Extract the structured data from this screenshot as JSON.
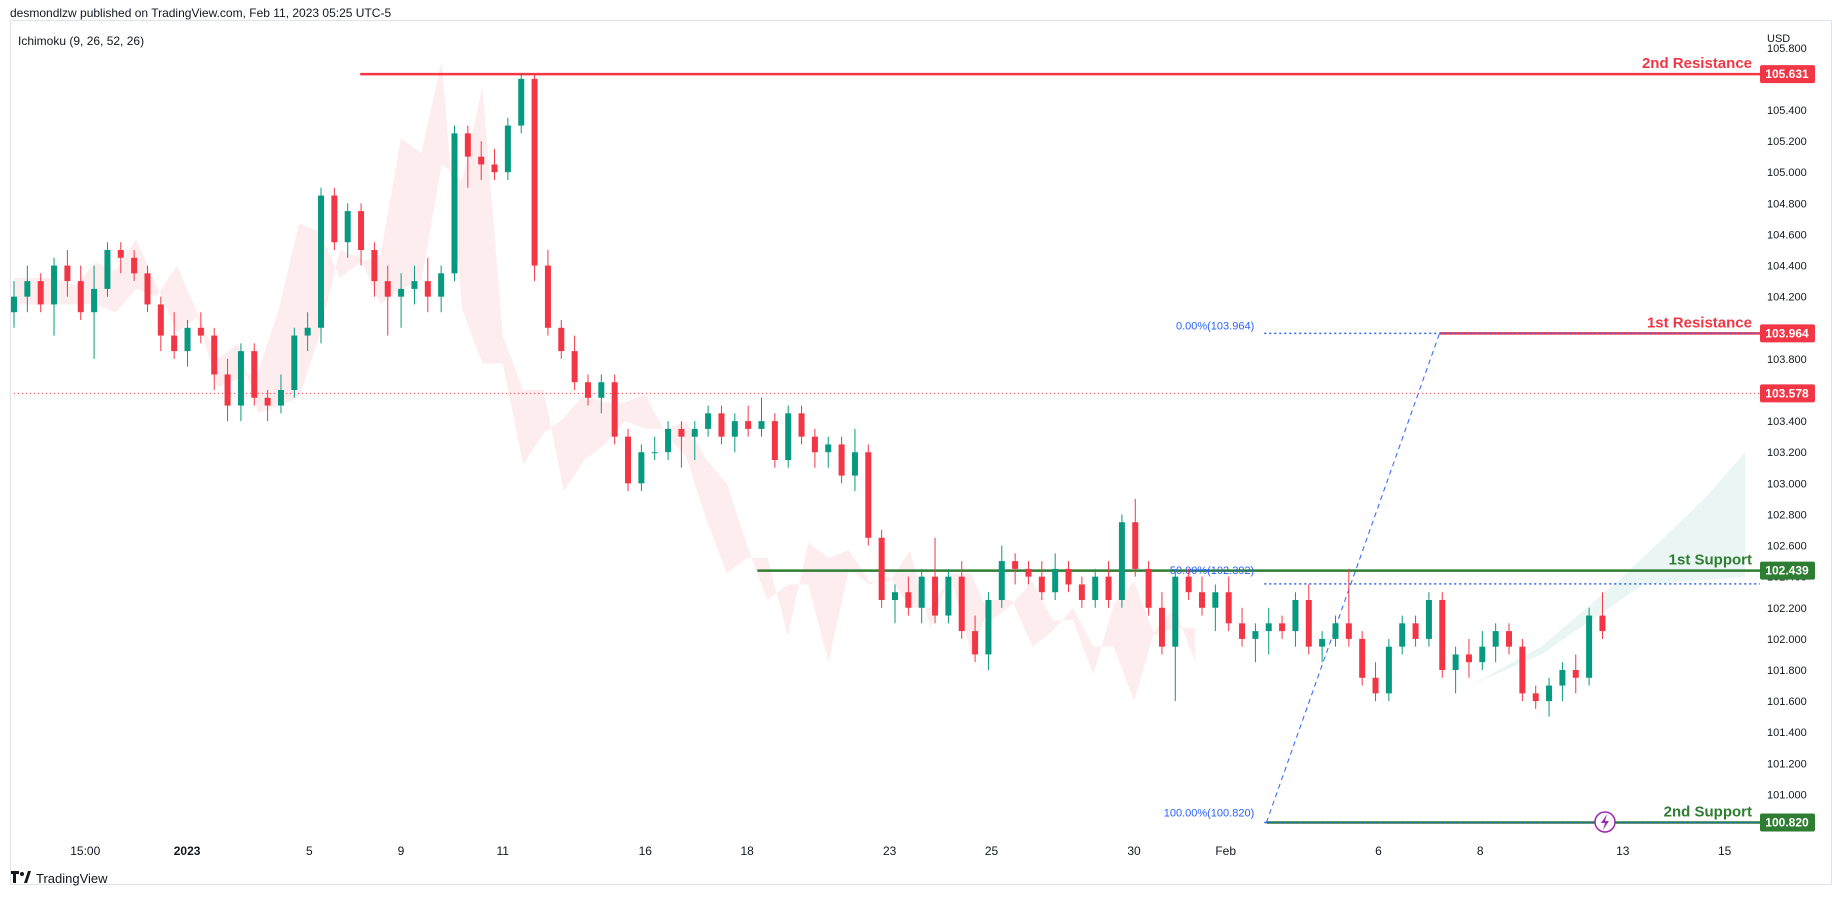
{
  "header": {
    "published_by": "desmondlzw published on TradingView.com, Feb 11, 2023 05:25 UTC-5",
    "indicator": "Ichimoku (9, 26, 52, 26)",
    "currency": "USD"
  },
  "footer": {
    "brand": "TradingView",
    "logo_icon": "tradingview-logo-icon"
  },
  "chart_data": {
    "type": "candlestick",
    "currency": "USD",
    "ylim": [
      100.72,
      105.85
    ],
    "xlim": [
      0,
      170
    ],
    "y_ticks": [
      "105.800",
      "105.600",
      "105.400",
      "105.200",
      "105.000",
      "104.800",
      "104.600",
      "104.400",
      "104.200",
      "104.000",
      "103.800",
      "103.600",
      "103.400",
      "103.200",
      "103.000",
      "102.800",
      "102.600",
      "102.400",
      "102.200",
      "102.000",
      "101.800",
      "101.600",
      "101.400",
      "101.200",
      "101.000",
      "100.800"
    ],
    "x_ticks": [
      {
        "label": "15:00",
        "x": 7
      },
      {
        "label": "2023",
        "x": 17
      },
      {
        "label": "5",
        "x": 29
      },
      {
        "label": "9",
        "x": 38
      },
      {
        "label": "11",
        "x": 48
      },
      {
        "label": "16",
        "x": 62
      },
      {
        "label": "18",
        "x": 72
      },
      {
        "label": "23",
        "x": 86
      },
      {
        "label": "25",
        "x": 96
      },
      {
        "label": "30",
        "x": 110
      },
      {
        "label": "Feb",
        "x": 119
      },
      {
        "label": "6",
        "x": 134
      },
      {
        "label": "8",
        "x": 144
      },
      {
        "label": "13",
        "x": 158
      },
      {
        "label": "15",
        "x": 168
      }
    ],
    "current_price": {
      "value": 103.578,
      "label": "103.578",
      "color": "#f23645"
    },
    "levels": [
      {
        "name": "2nd Resistance",
        "value": 105.631,
        "label": "105.631",
        "x_start": 34,
        "color": "#f23645"
      },
      {
        "name": "1st Resistance",
        "value": 103.964,
        "label": "103.964",
        "x_start": 140,
        "color": "#f23645"
      },
      {
        "name": "1st Support",
        "value": 102.439,
        "label": "102.439",
        "x_start": 73,
        "color": "#2e7d32"
      },
      {
        "name": "2nd Support",
        "value": 100.82,
        "label": "100.820",
        "x_start": 123,
        "color": "#2e7d32"
      }
    ],
    "fibonacci": [
      {
        "label": "0.00%(103.964)",
        "value": 103.964,
        "x_start": 122
      },
      {
        "label": "50.00%(102.392)",
        "value": 102.392,
        "x_start": 122
      },
      {
        "label": "100.00%(100.820)",
        "value": 100.82,
        "x_start": 122
      }
    ],
    "fib_trend": {
      "from": [
        123,
        100.82
      ],
      "to": [
        140,
        103.964
      ]
    },
    "candles": [
      [
        104.1,
        104.3,
        104.0,
        104.2
      ],
      [
        104.2,
        104.4,
        104.1,
        104.3
      ],
      [
        104.3,
        104.35,
        104.1,
        104.15
      ],
      [
        104.15,
        104.45,
        103.95,
        104.4
      ],
      [
        104.4,
        104.5,
        104.2,
        104.3
      ],
      [
        104.3,
        104.4,
        104.05,
        104.1
      ],
      [
        104.1,
        104.4,
        103.8,
        104.25
      ],
      [
        104.25,
        104.55,
        104.2,
        104.5
      ],
      [
        104.5,
        104.55,
        104.35,
        104.45
      ],
      [
        104.45,
        104.5,
        104.3,
        104.35
      ],
      [
        104.35,
        104.4,
        104.1,
        104.15
      ],
      [
        104.15,
        104.2,
        103.85,
        103.95
      ],
      [
        103.95,
        104.1,
        103.8,
        103.85
      ],
      [
        103.85,
        104.05,
        103.75,
        104.0
      ],
      [
        104.0,
        104.1,
        103.9,
        103.95
      ],
      [
        103.95,
        104.0,
        103.6,
        103.7
      ],
      [
        103.7,
        103.8,
        103.4,
        103.5
      ],
      [
        103.5,
        103.9,
        103.4,
        103.85
      ],
      [
        103.85,
        103.9,
        103.5,
        103.55
      ],
      [
        103.55,
        103.6,
        103.4,
        103.5
      ],
      [
        103.5,
        103.7,
        103.45,
        103.6
      ],
      [
        103.6,
        104.0,
        103.55,
        103.95
      ],
      [
        103.95,
        104.1,
        103.85,
        104.0
      ],
      [
        104.0,
        104.9,
        103.9,
        104.85
      ],
      [
        104.85,
        104.9,
        104.5,
        104.55
      ],
      [
        104.55,
        104.8,
        104.45,
        104.75
      ],
      [
        104.75,
        104.8,
        104.4,
        104.5
      ],
      [
        104.5,
        104.55,
        104.2,
        104.3
      ],
      [
        104.3,
        104.4,
        103.95,
        104.2
      ],
      [
        104.2,
        104.35,
        104.0,
        104.25
      ],
      [
        104.25,
        104.4,
        104.15,
        104.3
      ],
      [
        104.3,
        104.45,
        104.1,
        104.2
      ],
      [
        104.2,
        104.4,
        104.1,
        104.35
      ],
      [
        104.35,
        105.3,
        104.3,
        105.25
      ],
      [
        105.25,
        105.3,
        104.9,
        105.1
      ],
      [
        105.1,
        105.2,
        104.95,
        105.05
      ],
      [
        105.05,
        105.15,
        104.95,
        105.0
      ],
      [
        105.0,
        105.35,
        104.95,
        105.3
      ],
      [
        105.3,
        105.631,
        105.25,
        105.6
      ],
      [
        105.6,
        105.631,
        104.3,
        104.4
      ],
      [
        104.4,
        104.5,
        103.95,
        104.0
      ],
      [
        104.0,
        104.05,
        103.8,
        103.85
      ],
      [
        103.85,
        103.95,
        103.6,
        103.65
      ],
      [
        103.65,
        103.7,
        103.5,
        103.55
      ],
      [
        103.55,
        103.7,
        103.45,
        103.65
      ],
      [
        103.65,
        103.7,
        103.25,
        103.3
      ],
      [
        103.3,
        103.35,
        102.95,
        103.0
      ],
      [
        103.0,
        103.25,
        102.95,
        103.2
      ],
      [
        103.2,
        103.3,
        103.15,
        103.2
      ],
      [
        103.2,
        103.4,
        103.15,
        103.35
      ],
      [
        103.35,
        103.4,
        103.1,
        103.3
      ],
      [
        103.3,
        103.4,
        103.15,
        103.35
      ],
      [
        103.35,
        103.5,
        103.3,
        103.45
      ],
      [
        103.45,
        103.5,
        103.25,
        103.3
      ],
      [
        103.3,
        103.45,
        103.2,
        103.4
      ],
      [
        103.4,
        103.5,
        103.3,
        103.35
      ],
      [
        103.35,
        103.55,
        103.3,
        103.4
      ],
      [
        103.4,
        103.45,
        103.1,
        103.15
      ],
      [
        103.15,
        103.5,
        103.1,
        103.45
      ],
      [
        103.45,
        103.5,
        103.25,
        103.3
      ],
      [
        103.3,
        103.35,
        103.1,
        103.2
      ],
      [
        103.2,
        103.3,
        103.1,
        103.25
      ],
      [
        103.25,
        103.3,
        103.0,
        103.05
      ],
      [
        103.05,
        103.35,
        102.95,
        103.2
      ],
      [
        103.2,
        103.25,
        102.6,
        102.65
      ],
      [
        102.65,
        102.7,
        102.2,
        102.25
      ],
      [
        102.25,
        102.35,
        102.1,
        102.3
      ],
      [
        102.3,
        102.4,
        102.15,
        102.2
      ],
      [
        102.2,
        102.45,
        102.1,
        102.4
      ],
      [
        102.4,
        102.65,
        102.1,
        102.15
      ],
      [
        102.15,
        102.45,
        102.1,
        102.4
      ],
      [
        102.4,
        102.5,
        102.0,
        102.05
      ],
      [
        102.05,
        102.15,
        101.85,
        101.9
      ],
      [
        101.9,
        102.3,
        101.8,
        102.25
      ],
      [
        102.25,
        102.6,
        102.2,
        102.5
      ],
      [
        102.5,
        102.55,
        102.35,
        102.45
      ],
      [
        102.45,
        102.5,
        102.35,
        102.4
      ],
      [
        102.4,
        102.5,
        102.25,
        102.3
      ],
      [
        102.3,
        102.55,
        102.25,
        102.45
      ],
      [
        102.45,
        102.5,
        102.3,
        102.35
      ],
      [
        102.35,
        102.4,
        102.2,
        102.25
      ],
      [
        102.25,
        102.45,
        102.2,
        102.4
      ],
      [
        102.4,
        102.5,
        102.2,
        102.25
      ],
      [
        102.25,
        102.8,
        102.2,
        102.75
      ],
      [
        102.75,
        102.9,
        102.4,
        102.45
      ],
      [
        102.45,
        102.5,
        102.15,
        102.2
      ],
      [
        102.2,
        102.3,
        101.9,
        101.95
      ],
      [
        101.95,
        102.45,
        101.6,
        102.4
      ],
      [
        102.4,
        102.45,
        102.25,
        102.3
      ],
      [
        102.3,
        102.4,
        102.15,
        102.2
      ],
      [
        102.2,
        102.35,
        102.05,
        102.3
      ],
      [
        102.3,
        102.4,
        102.05,
        102.1
      ],
      [
        102.1,
        102.2,
        101.95,
        102.0
      ],
      [
        102.0,
        102.1,
        101.85,
        102.05
      ],
      [
        102.05,
        102.2,
        101.9,
        102.1
      ],
      [
        102.1,
        102.15,
        102.0,
        102.05
      ],
      [
        102.05,
        102.3,
        101.95,
        102.25
      ],
      [
        102.25,
        102.35,
        101.9,
        101.95
      ],
      [
        101.95,
        102.05,
        101.85,
        102.0
      ],
      [
        102.0,
        102.15,
        101.95,
        102.1
      ],
      [
        102.1,
        102.45,
        101.95,
        102.0
      ],
      [
        102.0,
        102.05,
        101.7,
        101.75
      ],
      [
        101.75,
        101.85,
        101.6,
        101.65
      ],
      [
        101.65,
        102.0,
        101.6,
        101.95
      ],
      [
        101.95,
        102.15,
        101.9,
        102.1
      ],
      [
        102.1,
        102.15,
        101.95,
        102.0
      ],
      [
        102.0,
        102.3,
        101.95,
        102.25
      ],
      [
        102.25,
        102.3,
        101.75,
        101.8
      ],
      [
        101.8,
        101.95,
        101.65,
        101.9
      ],
      [
        101.9,
        102.0,
        101.75,
        101.85
      ],
      [
        101.85,
        102.05,
        101.8,
        101.95
      ],
      [
        101.95,
        102.1,
        101.85,
        102.05
      ],
      [
        102.05,
        102.1,
        101.9,
        101.95
      ],
      [
        101.95,
        102.0,
        101.6,
        101.65
      ],
      [
        101.65,
        101.7,
        101.55,
        101.6
      ],
      [
        101.6,
        101.75,
        101.5,
        101.7
      ],
      [
        101.7,
        101.85,
        101.6,
        101.8
      ],
      [
        101.8,
        101.9,
        101.65,
        101.75
      ],
      [
        101.75,
        102.2,
        101.7,
        102.15
      ],
      [
        102.15,
        102.3,
        102.0,
        102.05
      ]
    ]
  }
}
